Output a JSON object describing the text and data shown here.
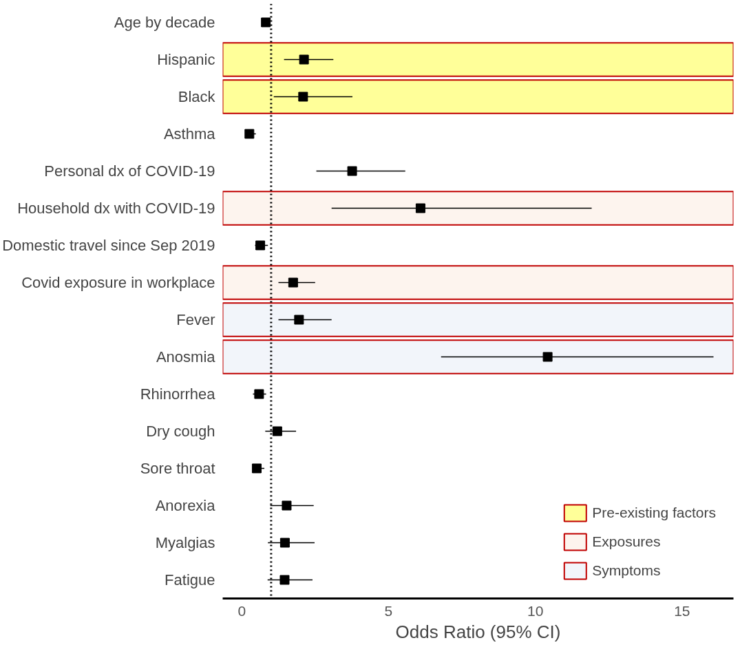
{
  "chart_data": {
    "type": "scatter",
    "orientation": "horizontal",
    "xlabel": "Odds Ratio (95% CI)",
    "categories": [
      "Age by decade",
      "Hispanic",
      "Black",
      "Asthma",
      "Personal dx of COVID-19",
      "Household dx with COVID-19",
      "Domestic travel since Sep 2019",
      "Covid exposure in workplace",
      "Fever",
      "Anosmia",
      "Rhinorrhea",
      "Dry cough",
      "Sore throat",
      "Anorexia",
      "Myalgias",
      "Fatigue"
    ],
    "values": [
      0.82,
      2.12,
      2.09,
      0.26,
      3.76,
      6.09,
      0.63,
      1.75,
      1.95,
      10.42,
      0.59,
      1.21,
      0.51,
      1.53,
      1.47,
      1.46
    ],
    "errors": [
      null,
      [
        1.44,
        3.12
      ],
      [
        1.09,
        3.77
      ],
      [
        0.22,
        0.48
      ],
      [
        2.54,
        5.57
      ],
      [
        3.06,
        11.92
      ],
      [
        0.45,
        0.89
      ],
      [
        1.25,
        2.5
      ],
      [
        1.25,
        3.06
      ],
      [
        6.79,
        16.07
      ],
      [
        0.38,
        0.83
      ],
      [
        0.8,
        1.85
      ],
      [
        0.4,
        0.77
      ],
      [
        0.97,
        2.45
      ],
      [
        0.89,
        2.48
      ],
      [
        0.88,
        2.41
      ]
    ],
    "color": "#000000",
    "marker": "square",
    "xlim": [
      -0.65,
      16.75
    ],
    "xticks": [
      0,
      5,
      10,
      15
    ],
    "grid": false,
    "legend": "bottom right",
    "ref_lines": [
      {
        "axis": "x",
        "value": 1,
        "color": "#000000",
        "line_style": "dotted"
      }
    ],
    "bands": [
      {
        "axis": "y",
        "from": "Hispanic",
        "to": "Hispanic",
        "color": "#ffff99",
        "label": "Pre-existing factors"
      },
      {
        "axis": "y",
        "from": "Black",
        "to": "Black",
        "color": "#ffff99"
      },
      {
        "axis": "y",
        "from": "Household dx with COVID-19",
        "to": "Household dx with COVID-19",
        "color": "#fdf4ee",
        "label": "Exposures"
      },
      {
        "axis": "y",
        "from": "Covid exposure in workplace",
        "to": "Covid exposure in workplace",
        "color": "#fdf4ee"
      },
      {
        "axis": "y",
        "from": "Fever",
        "to": "Fever",
        "color": "#f2f5fa",
        "label": "Symptoms"
      },
      {
        "axis": "y",
        "from": "Anosmia",
        "to": "Anosmia",
        "color": "#f2f5fa"
      }
    ]
  }
}
